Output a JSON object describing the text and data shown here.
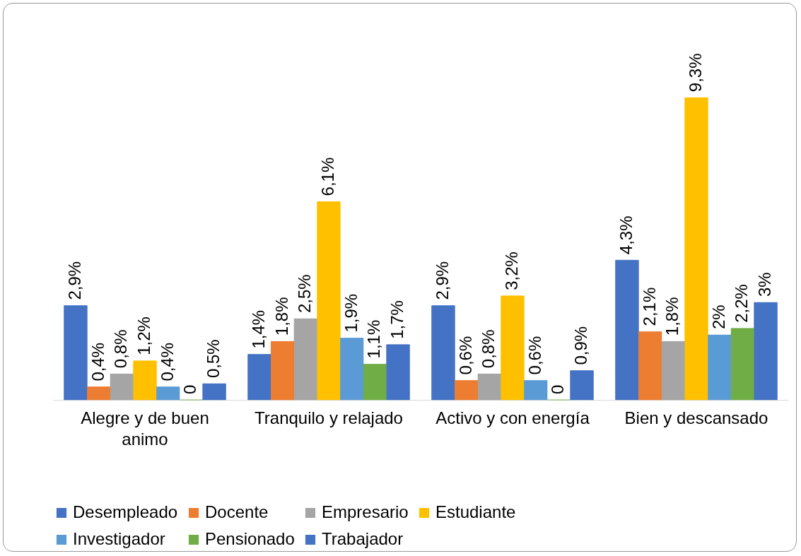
{
  "chart_data": {
    "type": "bar",
    "categories": [
      "Alegre y de buen animo",
      "Tranquilo y relajado",
      "Activo y con energía",
      "Bien y descansado"
    ],
    "series": [
      {
        "name": "Desempleado",
        "color": "#4472c4",
        "values": [
          2.9,
          1.4,
          2.9,
          4.3
        ],
        "value_labels": [
          "2,9%",
          "1,4%",
          "2,9%",
          "4,3%"
        ]
      },
      {
        "name": "Docente",
        "color": "#ed7d31",
        "values": [
          0.4,
          1.8,
          0.6,
          2.1
        ],
        "value_labels": [
          "0,4%",
          "1,8%",
          "0,6%",
          "2,1%"
        ]
      },
      {
        "name": "Empresario",
        "color": "#a5a5a5",
        "values": [
          0.8,
          2.5,
          0.8,
          1.8
        ],
        "value_labels": [
          "0,8%",
          "2,5%",
          "0,8%",
          "1,8%"
        ]
      },
      {
        "name": "Estudiante",
        "color": "#ffc000",
        "values": [
          1.2,
          6.1,
          3.2,
          9.3
        ],
        "value_labels": [
          "1,2%",
          "6,1%",
          "3,2%",
          "9,3%"
        ]
      },
      {
        "name": "Investigador",
        "color": "#5b9bd5",
        "values": [
          0.4,
          1.9,
          0.6,
          2
        ],
        "value_labels": [
          "0,4%",
          "1,9%",
          "0,6%",
          "2%"
        ]
      },
      {
        "name": "Pensionado",
        "color": "#70ad47",
        "values": [
          0,
          1.1,
          0,
          2.2
        ],
        "value_labels": [
          "0",
          "1,1%",
          "0",
          "2,2%"
        ]
      },
      {
        "name": "Trabajador",
        "color": "#4472c4",
        "values": [
          0.5,
          1.7,
          0.9,
          3
        ],
        "value_labels": [
          "0,5%",
          "1,7%",
          "0,9%",
          "3%"
        ]
      }
    ],
    "legend": "bottom",
    "grid": false
  }
}
